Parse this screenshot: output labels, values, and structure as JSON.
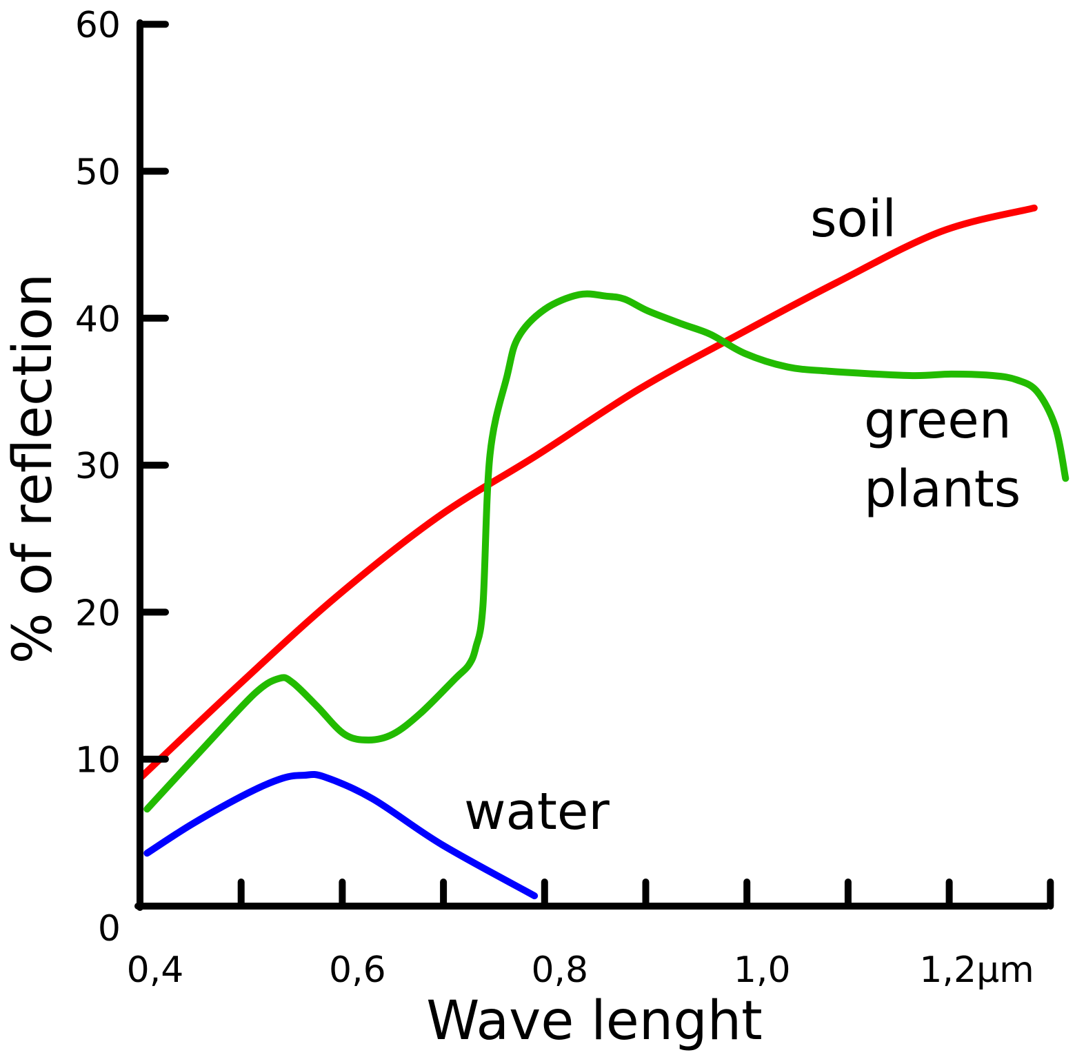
{
  "chart_data": {
    "type": "line",
    "xlabel": "Wave lenght",
    "ylabel": "% of reflection",
    "xlim": [
      0.4,
      1.3
    ],
    "ylim": [
      0,
      60
    ],
    "grid": false,
    "x_ticks": [
      0.4,
      0.5,
      0.6,
      0.7,
      0.8,
      0.9,
      1.0,
      1.1,
      1.2,
      1.3
    ],
    "x_tick_labels": [
      {
        "x": 0.4,
        "label": "0,4"
      },
      {
        "x": 0.6,
        "label": "0,6"
      },
      {
        "x": 0.8,
        "label": "0,8"
      },
      {
        "x": 1.0,
        "label": "1,0"
      },
      {
        "x": 1.2,
        "label": "1,2μm"
      }
    ],
    "y_ticks": [
      10,
      20,
      30,
      40,
      50,
      60
    ],
    "y_tick_labels": [
      "0",
      "10",
      "20",
      "30",
      "40",
      "50",
      "60"
    ],
    "series": [
      {
        "name": "soil",
        "color": "#ff0000",
        "x": [
          0.4,
          0.5,
          0.595,
          0.695,
          0.793,
          0.894,
          0.992,
          1.088,
          1.192,
          1.284
        ],
        "y": [
          8.7,
          15.2,
          21.1,
          26.5,
          30.7,
          35.2,
          38.9,
          42.4,
          45.9,
          47.5
        ]
      },
      {
        "name": "green plants",
        "color": "#22bb00",
        "x": [
          0.407,
          0.466,
          0.514,
          0.538,
          0.551,
          0.575,
          0.602,
          0.626,
          0.65,
          0.677,
          0.712,
          0.725,
          0.732,
          0.739,
          0.746,
          0.763,
          0.774,
          0.8,
          0.834,
          0.861,
          0.879,
          0.902,
          0.936,
          0.964,
          0.998,
          1.039,
          1.08,
          1.161,
          1.202,
          1.243,
          1.267,
          1.287,
          1.305,
          1.315
        ],
        "y": [
          6.6,
          11.0,
          14.5,
          15.5,
          15.2,
          13.6,
          11.7,
          11.3,
          11.7,
          13.1,
          15.5,
          16.4,
          17.6,
          20.4,
          30.7,
          36.1,
          38.7,
          40.6,
          41.6,
          41.5,
          41.3,
          40.5,
          39.6,
          38.9,
          37.6,
          36.7,
          36.4,
          36.1,
          36.2,
          36.1,
          35.8,
          35.0,
          32.6,
          29.1
        ]
      },
      {
        "name": "water",
        "color": "#0000ff",
        "x": [
          0.407,
          0.452,
          0.507,
          0.541,
          0.562,
          0.582,
          0.63,
          0.698,
          0.79
        ],
        "y": [
          3.6,
          5.6,
          7.7,
          8.7,
          8.9,
          8.8,
          7.3,
          4.2,
          0.7
        ]
      }
    ],
    "annotations": {
      "soil": "soil",
      "green_1": "green",
      "green_2": "plants",
      "water": "water"
    }
  }
}
